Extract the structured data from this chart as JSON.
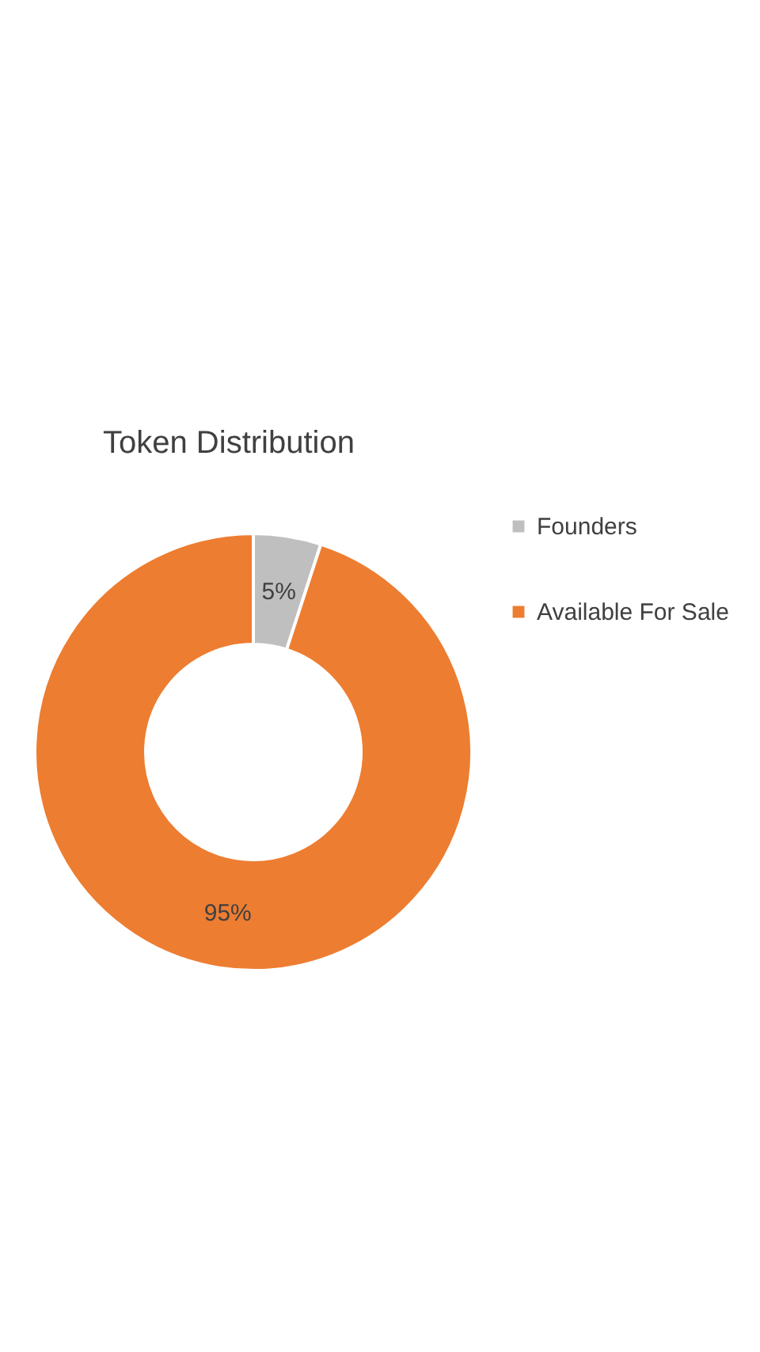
{
  "chart_data": {
    "type": "donut",
    "title": "Token Distribution",
    "categories": [
      "Founders",
      "Available For Sale"
    ],
    "values": [
      5,
      95
    ],
    "colors": [
      "#bfbfbf",
      "#ed7d31"
    ],
    "value_labels": [
      "5%",
      "95%"
    ],
    "legend": "right"
  }
}
